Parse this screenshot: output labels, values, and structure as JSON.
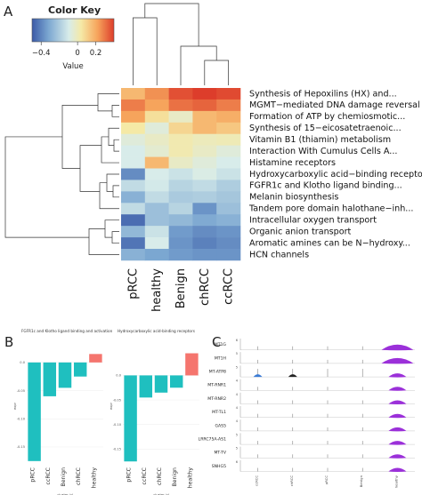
{
  "panels": {
    "a": "A",
    "b": "B",
    "c": "C"
  },
  "colors": {
    "low": "#3b5aa7",
    "mid": "#f5e9a6",
    "high": "#dd3d2b",
    "bar_teal": "#1fbfbf",
    "bar_red": "#f5756e",
    "violin_purple": "#9b30d9"
  },
  "chart_data": [
    {
      "type": "heatmap",
      "columns": [
        "pRCC",
        "healthy",
        "Benign",
        "chRCC",
        "ccRCC"
      ],
      "rows": [
        "Synthesis of Hepoxilins (HX) and...",
        "MGMT−mediated DNA damage reversal",
        "Formation of ATP by chemiosmotic...",
        "Synthesis of 15−eicosatetraenoic...",
        "Vitamin B1 (thiamin) metabolism",
        "Interaction With Cumulus Cells A...",
        "Histamine receptors",
        "Hydroxycarboxylic acid−binding receptors",
        "FGFR1c and Klotho ligand binding...",
        "Melanin biosynthesis",
        "Tandem pore domain halothane−inh...",
        "Intracellular oxygen transport",
        "Organic anion transport",
        "Aromatic amines can be N−hydroxy...",
        "HCN channels"
      ],
      "values": [
        [
          0.18,
          0.25,
          0.35,
          0.38,
          0.36
        ],
        [
          0.28,
          0.22,
          0.3,
          0.32,
          0.28
        ],
        [
          0.22,
          0.1,
          0.02,
          0.18,
          0.2
        ],
        [
          0.08,
          -0.02,
          0.12,
          0.18,
          0.15
        ],
        [
          -0.02,
          0.02,
          0.06,
          0.04,
          0.05
        ],
        [
          -0.05,
          0.0,
          0.06,
          0.02,
          -0.02
        ],
        [
          -0.05,
          0.18,
          0.02,
          -0.02,
          -0.05
        ],
        [
          -0.32,
          -0.05,
          -0.08,
          -0.04,
          -0.08
        ],
        [
          -0.1,
          -0.06,
          -0.12,
          -0.1,
          -0.14
        ],
        [
          -0.22,
          -0.1,
          -0.15,
          -0.14,
          -0.16
        ],
        [
          -0.1,
          -0.18,
          -0.12,
          -0.3,
          -0.18
        ],
        [
          -0.4,
          -0.18,
          -0.2,
          -0.24,
          -0.22
        ],
        [
          -0.2,
          -0.08,
          -0.28,
          -0.32,
          -0.3
        ],
        [
          -0.38,
          -0.05,
          -0.3,
          -0.35,
          -0.32
        ],
        [
          -0.22,
          -0.25,
          -0.28,
          -0.3,
          -0.3
        ]
      ],
      "color_key": {
        "title": "Color Key",
        "label": "Value",
        "ticks": [
          "−0.4",
          "0",
          "0.2"
        ],
        "tick_values": [
          -0.4,
          0,
          0.2
        ],
        "range": [
          -0.5,
          0.4
        ]
      }
    },
    {
      "type": "bar",
      "title": "FGFR1c and Klotho ligand binding and activation",
      "categories": [
        "pRCC",
        "ccRCC",
        "Benign",
        "chRCC",
        "healthy"
      ],
      "values": [
        -0.175,
        -0.06,
        -0.045,
        -0.025,
        0.015
      ],
      "ylim": [
        -0.18,
        0.025
      ],
      "yticks": [
        "0.0",
        "-0.05",
        "-0.10",
        "-0.15"
      ],
      "ytick_values": [
        0,
        -0.05,
        -0.1,
        -0.15
      ],
      "xlabel": "cluster_id",
      "ylabel": "expr"
    },
    {
      "type": "bar",
      "title": "Hydroxycarboxylic acid-binding receptors",
      "categories": [
        "pRCC",
        "ccRCC",
        "chRCC",
        "Benign",
        "healthy"
      ],
      "values": [
        -0.175,
        -0.045,
        -0.035,
        -0.025,
        0.045
      ],
      "ylim": [
        -0.18,
        0.055
      ],
      "yticks": [
        "0.0",
        "-0.05",
        "-0.10",
        "-0.15"
      ],
      "ytick_values": [
        0,
        -0.05,
        -0.1,
        -0.15
      ],
      "xlabel": "cluster_id",
      "ylabel": "expr"
    },
    {
      "type": "violin",
      "genes": [
        "MT1G",
        "MT1H",
        "MT-ATP8",
        "MT-RNR1",
        "MT-RNR2",
        "MT-TL1",
        "GAS5",
        "LRRC75A-AS1",
        "MT-TV",
        "SNHG5"
      ],
      "groups": [
        "ccRCC",
        "chRCC",
        "pRCC",
        "Benign",
        "healthy"
      ],
      "ymax_labels": [
        "6",
        "5",
        "5",
        "4",
        "4",
        "4",
        "4",
        "5",
        "5",
        "6"
      ],
      "highlight_group": "healthy"
    }
  ]
}
